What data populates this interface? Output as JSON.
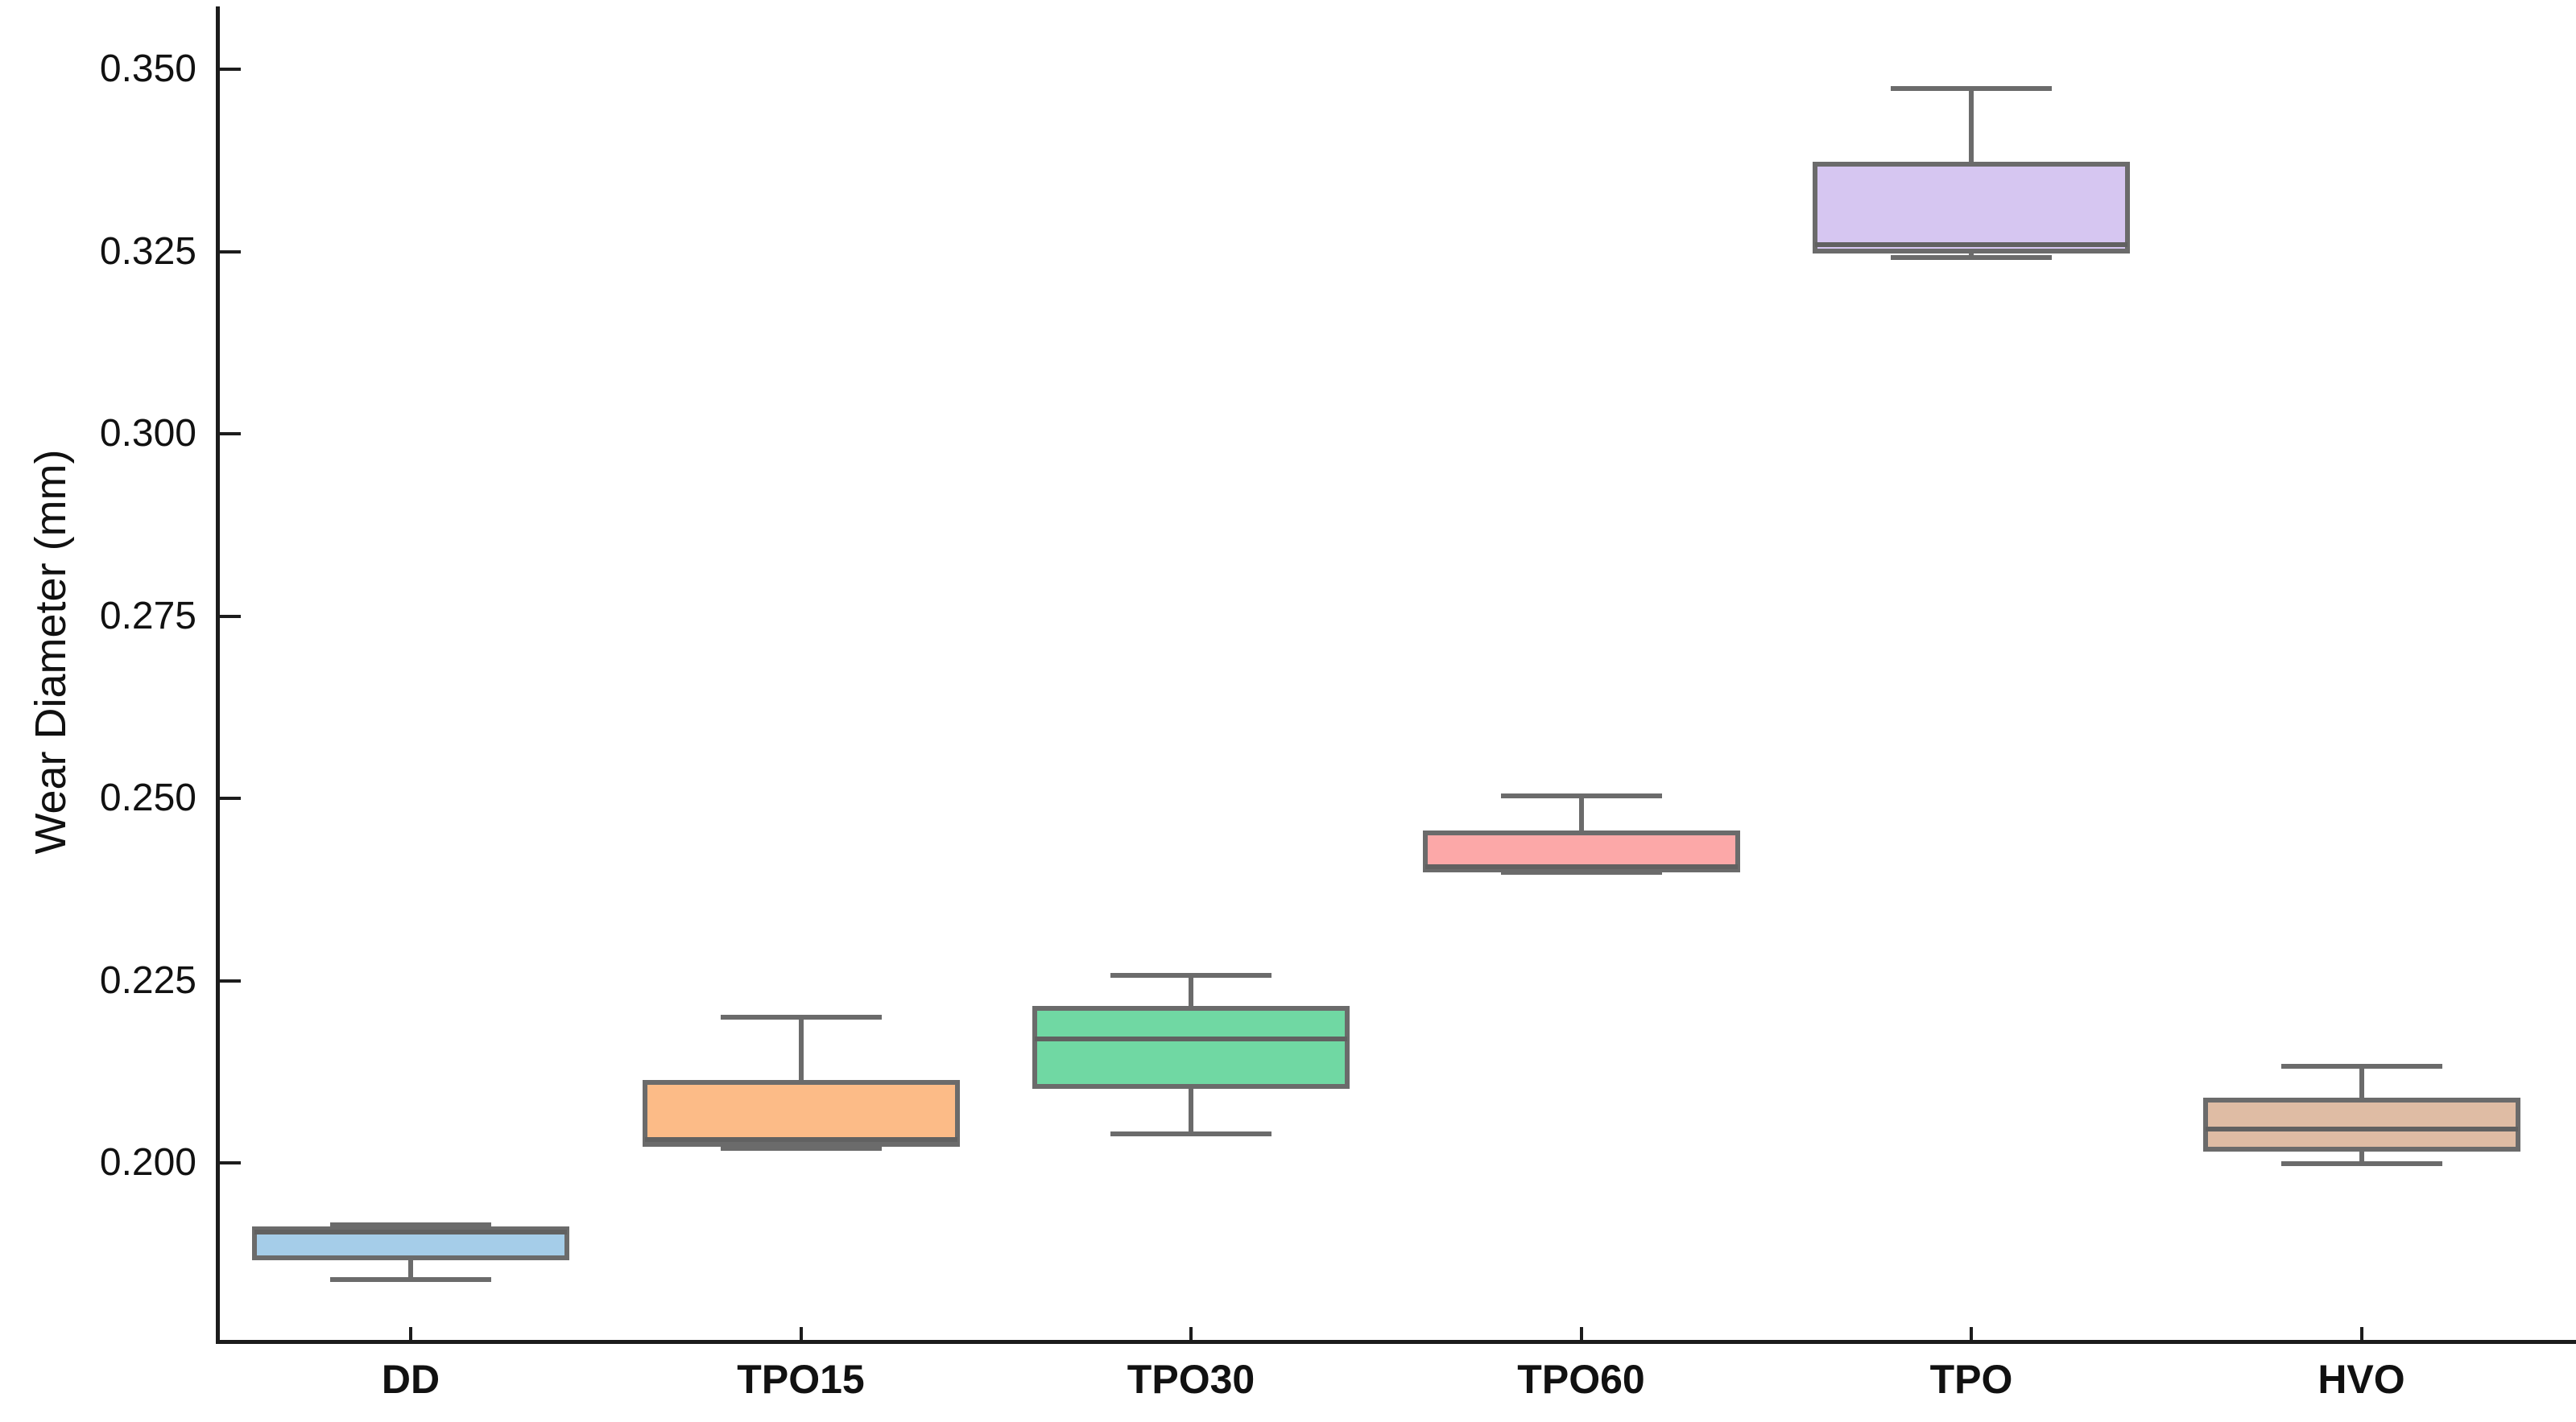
{
  "figure": {
    "background_color": "#ffffff",
    "spine_color": "#1c1c1c",
    "text_color": "#111111"
  },
  "chart_data": {
    "type": "boxplot",
    "title": "",
    "xlabel": "",
    "ylabel": "Wear Diameter (mm)",
    "categories": [
      "DD",
      "TPO15",
      "TPO30",
      "TPO60",
      "TPO",
      "HVO"
    ],
    "ylim": [
      0.1755,
      0.3585
    ],
    "grid": false,
    "legend": null,
    "yticks": {
      "values": [
        0.35,
        0.325,
        0.3,
        0.275,
        0.25,
        0.225,
        0.2
      ],
      "labels": [
        "0.350",
        "0.325",
        "0.300",
        "0.275",
        "0.250",
        "0.225",
        "0.200"
      ]
    },
    "edge_color": "#6b6b6b",
    "median_color": "#616161",
    "series": [
      {
        "name": "DD",
        "whisker_low": 0.184,
        "q1": 0.187,
        "median": 0.1905,
        "q3": 0.191,
        "whisker_high": 0.1915,
        "fill_color": "#a5cde9"
      },
      {
        "name": "TPO15",
        "whisker_low": 0.202,
        "q1": 0.2025,
        "median": 0.2032,
        "q3": 0.211,
        "whisker_high": 0.22,
        "fill_color": "#fcbb87"
      },
      {
        "name": "TPO30",
        "whisker_low": 0.204,
        "q1": 0.2105,
        "median": 0.217,
        "q3": 0.2212,
        "whisker_high": 0.2257,
        "fill_color": "#70d8a3"
      },
      {
        "name": "TPO60",
        "whisker_low": 0.2398,
        "q1": 0.2402,
        "median": 0.2406,
        "q3": 0.2452,
        "whisker_high": 0.2503,
        "fill_color": "#fca8a8"
      },
      {
        "name": "TPO",
        "whisker_low": 0.3242,
        "q1": 0.325,
        "median": 0.3259,
        "q3": 0.337,
        "whisker_high": 0.3473,
        "fill_color": "#d6c6f1"
      },
      {
        "name": "HVO",
        "whisker_low": 0.1999,
        "q1": 0.2019,
        "median": 0.2046,
        "q3": 0.2086,
        "whisker_high": 0.2133,
        "fill_color": "#dfbca4"
      }
    ]
  }
}
